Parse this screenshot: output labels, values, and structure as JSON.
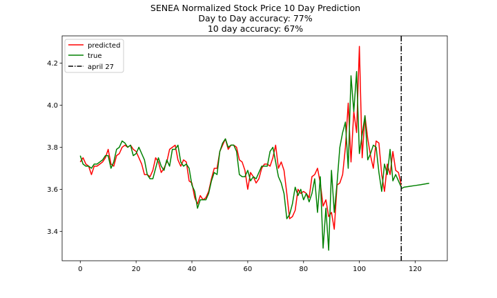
{
  "chart_data": {
    "type": "line",
    "title": "SENEA Normalized Stock Price 10 Day Prediction",
    "subtitle_lines": [
      "Day to Day accuracy: 77%",
      "10 day accuracy: 67%"
    ],
    "xlabel": "",
    "ylabel": "",
    "xlim": [
      -6.5,
      131.5
    ],
    "ylim": [
      3.26,
      4.33
    ],
    "x_ticks": [
      0,
      20,
      40,
      60,
      80,
      100,
      120
    ],
    "y_ticks": [
      3.4,
      3.6,
      3.8,
      4.0,
      4.2
    ],
    "grid": false,
    "legend_position": "top-left",
    "series": [
      {
        "name": "predicted",
        "color": "#ff0000",
        "x_start": 0,
        "values": [
          3.73,
          3.75,
          3.72,
          3.71,
          3.67,
          3.71,
          3.71,
          3.72,
          3.73,
          3.75,
          3.79,
          3.72,
          3.71,
          3.76,
          3.77,
          3.8,
          3.81,
          3.8,
          3.81,
          3.79,
          3.78,
          3.75,
          3.72,
          3.67,
          3.67,
          3.66,
          3.69,
          3.75,
          3.73,
          3.68,
          3.7,
          3.73,
          3.79,
          3.8,
          3.81,
          3.74,
          3.71,
          3.74,
          3.73,
          3.64,
          3.63,
          3.56,
          3.53,
          3.57,
          3.55,
          3.56,
          3.59,
          3.65,
          3.7,
          3.7,
          3.78,
          3.81,
          3.84,
          3.79,
          3.81,
          3.81,
          3.8,
          3.74,
          3.73,
          3.69,
          3.6,
          3.68,
          3.66,
          3.63,
          3.65,
          3.7,
          3.72,
          3.72,
          3.71,
          3.75,
          3.81,
          3.7,
          3.73,
          3.69,
          3.58,
          3.46,
          3.47,
          3.5,
          3.6,
          3.58,
          3.59,
          3.58,
          3.56,
          3.66,
          3.67,
          3.7,
          3.63,
          3.52,
          3.55,
          3.47,
          3.49,
          3.41,
          3.62,
          3.63,
          3.67,
          3.8,
          4.01,
          3.73,
          3.97,
          3.87,
          4.28,
          3.75,
          3.95,
          3.84,
          3.76,
          3.7,
          3.83,
          3.82,
          3.67,
          3.59,
          3.72,
          3.67,
          3.78,
          3.69,
          3.68,
          3.62
        ]
      },
      {
        "name": "true",
        "color": "#008000",
        "x_start": 0,
        "values": [
          3.76,
          3.72,
          3.71,
          3.71,
          3.7,
          3.72,
          3.72,
          3.73,
          3.74,
          3.76,
          3.76,
          3.7,
          3.73,
          3.79,
          3.8,
          3.83,
          3.82,
          3.8,
          3.81,
          3.76,
          3.77,
          3.8,
          3.77,
          3.74,
          3.67,
          3.65,
          3.65,
          3.7,
          3.75,
          3.71,
          3.69,
          3.74,
          3.71,
          3.79,
          3.79,
          3.81,
          3.73,
          3.71,
          3.72,
          3.7,
          3.62,
          3.59,
          3.51,
          3.55,
          3.55,
          3.55,
          3.58,
          3.64,
          3.68,
          3.67,
          3.78,
          3.82,
          3.84,
          3.8,
          3.81,
          3.81,
          3.78,
          3.67,
          3.66,
          3.66,
          3.69,
          3.64,
          3.66,
          3.65,
          3.68,
          3.71,
          3.71,
          3.71,
          3.78,
          3.8,
          3.73,
          3.66,
          3.63,
          3.58,
          3.46,
          3.48,
          3.53,
          3.61,
          3.57,
          3.6,
          3.55,
          3.58,
          3.54,
          3.58,
          3.65,
          3.49,
          3.66,
          3.32,
          3.51,
          3.31,
          3.69,
          3.49,
          3.63,
          3.8,
          3.87,
          3.92,
          3.7,
          4.14,
          3.97,
          4.16,
          3.77,
          3.86,
          3.95,
          3.74,
          3.77,
          3.81,
          3.8,
          3.68,
          3.59,
          3.72,
          3.67,
          3.79,
          3.64,
          3.67,
          3.64,
          3.61
        ],
        "forecast": {
          "x": [
            115,
            116,
            118,
            120,
            122,
            125
          ],
          "y": [
            3.603,
            3.61,
            3.614,
            3.618,
            3.622,
            3.629
          ]
        }
      }
    ],
    "vline": {
      "name": "april 27",
      "x": 115,
      "color": "#000000"
    }
  }
}
